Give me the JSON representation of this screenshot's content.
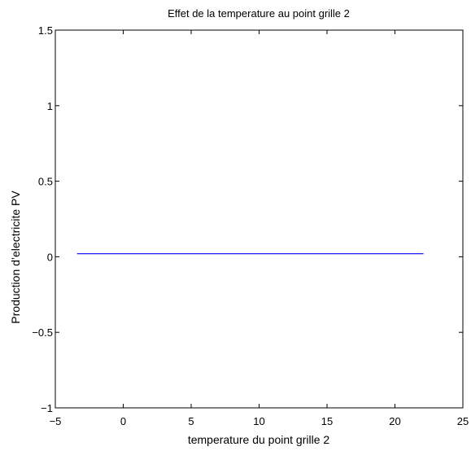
{
  "chart_data": {
    "type": "line",
    "title": "Effet de la temperature au point grille 2",
    "xlabel": "temperature du point grille 2",
    "ylabel": "Production d’electricite PV",
    "xlim": [
      -5,
      25
    ],
    "ylim": [
      -1,
      1.5
    ],
    "x_ticks": [
      -5,
      0,
      5,
      10,
      15,
      20,
      25
    ],
    "y_ticks": [
      -1,
      -0.5,
      0,
      0.5,
      1,
      1.5
    ],
    "x_tick_labels": [
      "−5",
      "0",
      "5",
      "10",
      "15",
      "20",
      "25"
    ],
    "y_tick_labels": [
      "−1",
      "−0.5",
      "0",
      "0.5",
      "1",
      "1.5"
    ],
    "grid": false,
    "series": [
      {
        "x": [
          -3.4,
          22.1
        ],
        "y": [
          0.02,
          0.02
        ],
        "color": "#0000ff"
      }
    ]
  }
}
